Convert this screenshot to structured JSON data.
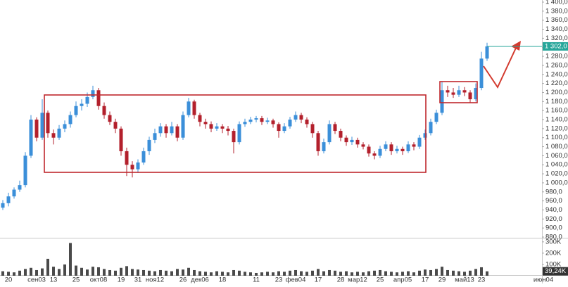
{
  "chart_data": {
    "type": "candlestick",
    "categories": [
      null,
      "20",
      null,
      null,
      null,
      null,
      "сен03",
      null,
      null,
      "13",
      null,
      null,
      null,
      "25",
      null,
      null,
      null,
      "окт08",
      null,
      null,
      null,
      "19",
      null,
      null,
      "31",
      null,
      null,
      "ноя12",
      null,
      null,
      null,
      null,
      "26",
      null,
      null,
      "дек06",
      null,
      null,
      null,
      "18",
      null,
      null,
      null,
      null,
      null,
      "11",
      null,
      null,
      null,
      "23",
      null,
      null,
      "фев04",
      null,
      null,
      null,
      "17",
      null,
      null,
      null,
      "28",
      null,
      null,
      "мар12",
      null,
      null,
      null,
      "25",
      null,
      null,
      null,
      "апр05",
      null,
      null,
      null,
      "17",
      null,
      null,
      "29",
      null,
      null,
      null,
      "май13",
      null,
      null,
      "23",
      null,
      null,
      null,
      null,
      null,
      null,
      null,
      null,
      null,
      null,
      "июн04"
    ],
    "open": [
      945,
      955,
      970,
      985,
      995,
      1060,
      1140,
      1100,
      1155,
      1110,
      1100,
      1120,
      1130,
      1150,
      1170,
      1175,
      1190,
      1205,
      1170,
      1150,
      1135,
      1120,
      1070,
      1040,
      1030,
      1045,
      1070,
      1095,
      1110,
      1125,
      1110,
      1125,
      1100,
      1150,
      1180,
      1150,
      1135,
      1130,
      1120,
      1125,
      1120,
      1115,
      1090,
      1130,
      1135,
      1140,
      1143,
      1135,
      1138,
      1130,
      1115,
      1125,
      1140,
      1150,
      1140,
      1130,
      1110,
      1070,
      1090,
      1130,
      1115,
      1100,
      1090,
      1095,
      1085,
      1080,
      1065,
      1060,
      1075,
      1085,
      1070,
      1075,
      1070,
      1085,
      1080,
      1100,
      1110,
      1135,
      1155,
      1205,
      1200,
      1195,
      1205,
      1200,
      1185,
      1210,
      1275,
      null,
      null,
      null,
      null,
      null,
      null,
      null,
      null,
      null,
      null
    ],
    "high": [
      962,
      978,
      990,
      1005,
      1068,
      1150,
      1145,
      1185,
      1160,
      1118,
      1128,
      1138,
      1158,
      1180,
      1185,
      1200,
      1215,
      1210,
      1178,
      1158,
      1142,
      1125,
      1078,
      1048,
      1052,
      1078,
      1102,
      1120,
      1132,
      1130,
      1135,
      1130,
      1158,
      1188,
      1184,
      1155,
      1142,
      1136,
      1132,
      1130,
      1126,
      1120,
      1136,
      1142,
      1146,
      1148,
      1148,
      1144,
      1142,
      1134,
      1132,
      1146,
      1158,
      1155,
      1145,
      1135,
      1115,
      1098,
      1138,
      1135,
      1120,
      1105,
      1102,
      1100,
      1090,
      1085,
      1070,
      1082,
      1092,
      1090,
      1082,
      1080,
      1092,
      1090,
      1106,
      1118,
      1142,
      1162,
      1225,
      1215,
      1210,
      1215,
      1212,
      1205,
      1220,
      1290,
      1310,
      null,
      null,
      null,
      null,
      null,
      null,
      null,
      null,
      null,
      null
    ],
    "low": [
      940,
      948,
      965,
      980,
      990,
      1055,
      1092,
      1095,
      1100,
      1085,
      1095,
      1112,
      1122,
      1145,
      1160,
      1168,
      1185,
      1162,
      1142,
      1128,
      1110,
      1060,
      1015,
      1012,
      1022,
      1040,
      1062,
      1088,
      1102,
      1100,
      1105,
      1092,
      1095,
      1145,
      1142,
      1125,
      1120,
      1112,
      1115,
      1110,
      1105,
      1065,
      1085,
      1124,
      1130,
      1134,
      1128,
      1130,
      1122,
      1100,
      1110,
      1120,
      1135,
      1132,
      1122,
      1100,
      1060,
      1065,
      1085,
      1108,
      1092,
      1082,
      1084,
      1078,
      1074,
      1058,
      1052,
      1055,
      1070,
      1062,
      1065,
      1062,
      1066,
      1072,
      1075,
      1095,
      1105,
      1130,
      1150,
      1190,
      1188,
      1190,
      1192,
      1178,
      1180,
      1205,
      1270,
      null,
      null,
      null,
      null,
      null,
      null,
      null,
      null,
      null,
      null
    ],
    "close": [
      955,
      970,
      985,
      995,
      1060,
      1140,
      1100,
      1155,
      1110,
      1100,
      1120,
      1130,
      1150,
      1170,
      1175,
      1190,
      1205,
      1170,
      1150,
      1135,
      1120,
      1070,
      1040,
      1030,
      1045,
      1070,
      1095,
      1110,
      1125,
      1110,
      1125,
      1100,
      1150,
      1180,
      1150,
      1135,
      1130,
      1120,
      1125,
      1120,
      1115,
      1090,
      1130,
      1135,
      1140,
      1143,
      1135,
      1138,
      1130,
      1115,
      1125,
      1140,
      1150,
      1140,
      1130,
      1110,
      1070,
      1090,
      1130,
      1115,
      1100,
      1090,
      1095,
      1085,
      1080,
      1065,
      1060,
      1075,
      1085,
      1070,
      1075,
      1070,
      1085,
      1080,
      1100,
      1110,
      1135,
      1155,
      1205,
      1200,
      1195,
      1205,
      1200,
      1185,
      1210,
      1275,
      1302,
      null,
      null,
      null,
      null,
      null,
      null,
      null,
      null,
      null,
      null
    ],
    "up_color": "#3b8fd9",
    "down_color": "#b3202c",
    "ylim": [
      880,
      1400
    ],
    "yticks": [
      {
        "value": 880,
        "label": "880,0"
      },
      {
        "value": 900,
        "label": "900,0"
      },
      {
        "value": 920,
        "label": "920,0"
      },
      {
        "value": 940,
        "label": "940,0"
      },
      {
        "value": 960,
        "label": "960,0"
      },
      {
        "value": 980,
        "label": "980,0"
      },
      {
        "value": 1000,
        "label": "1 000,0"
      },
      {
        "value": 1020,
        "label": "1 020,0"
      },
      {
        "value": 1040,
        "label": "1 040,0"
      },
      {
        "value": 1060,
        "label": "1 060,0"
      },
      {
        "value": 1080,
        "label": "1 080,0"
      },
      {
        "value": 1100,
        "label": "1 100,0"
      },
      {
        "value": 1120,
        "label": "1 120,0"
      },
      {
        "value": 1140,
        "label": "1 140,0"
      },
      {
        "value": 1160,
        "label": "1 160,0"
      },
      {
        "value": 1180,
        "label": "1 180,0"
      },
      {
        "value": 1200,
        "label": "1 200,0"
      },
      {
        "value": 1220,
        "label": "1 220,0"
      },
      {
        "value": 1240,
        "label": "1 240,0"
      },
      {
        "value": 1260,
        "label": "1 260,0"
      },
      {
        "value": 1280,
        "label": "1 280,0"
      },
      {
        "value": 1300,
        "label": "1 300,0"
      },
      {
        "value": 1320,
        "label": "1 320,0"
      },
      {
        "value": 1340,
        "label": "1 340,0"
      },
      {
        "value": 1360,
        "label": "1 360,0"
      },
      {
        "value": 1380,
        "label": "1 380,0"
      },
      {
        "value": 1400,
        "label": "1 400,0"
      }
    ],
    "last_price": {
      "value": 1302,
      "label": "1 302,0"
    },
    "last_price_color": "#26a69a",
    "volume": {
      "values": [
        40000,
        35000,
        30000,
        45000,
        60000,
        70000,
        50000,
        65000,
        150000,
        80000,
        60000,
        100000,
        290000,
        90000,
        70000,
        55000,
        80000,
        75000,
        60000,
        50000,
        45000,
        70000,
        85000,
        60000,
        55000,
        50000,
        45000,
        40000,
        50000,
        45000,
        40000,
        60000,
        55000,
        70000,
        50000,
        40000,
        35000,
        30000,
        40000,
        35000,
        30000,
        50000,
        45000,
        35000,
        30000,
        25000,
        30000,
        35000,
        30000,
        40000,
        35000,
        45000,
        50000,
        40000,
        35000,
        45000,
        60000,
        40000,
        50000,
        45000,
        35000,
        40000,
        30000,
        35000,
        30000,
        40000,
        45000,
        50000,
        40000,
        35000,
        30000,
        35000,
        40000,
        30000,
        45000,
        55000,
        50000,
        60000,
        80000,
        50000,
        45000,
        40000,
        35000,
        45000,
        60000,
        75000,
        39240,
        null,
        null,
        null,
        null,
        null,
        null,
        null,
        null,
        null,
        null
      ],
      "color": "#4a4a4a",
      "ylim": [
        0,
        330000
      ],
      "yticks": [
        {
          "value": 100000,
          "label": "100K"
        },
        {
          "value": 200000,
          "label": "200K"
        },
        {
          "value": 300000,
          "label": "300K"
        }
      ],
      "current": {
        "value": 39240,
        "label": "39,24K"
      }
    }
  }
}
